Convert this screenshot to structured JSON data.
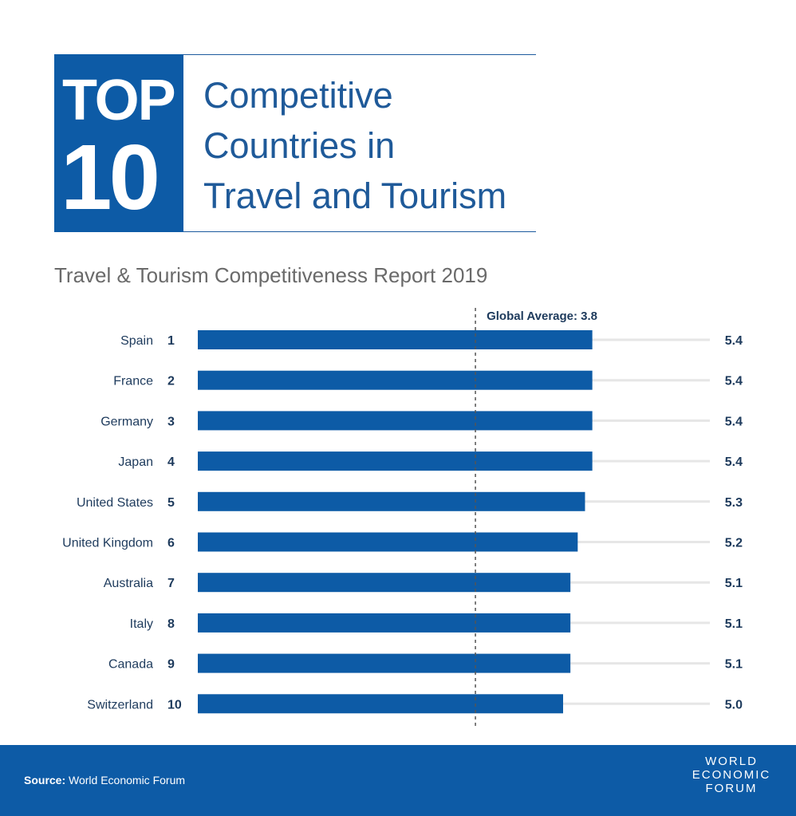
{
  "header": {
    "top_word": "TOP",
    "top_number": "10",
    "title_lines": [
      "Competitive",
      "Countries in",
      "Travel and Tourism"
    ],
    "subtitle": "Travel & Tourism Competitiveness Report 2019"
  },
  "footer": {
    "source_label": "Source:",
    "source_text": "World Economic Forum",
    "logo_lines": [
      "WORLD",
      "ECONOMIC",
      "FORUM"
    ]
  },
  "colors": {
    "bar": "#0d5ba6",
    "track": "#e6e6e6",
    "text": "#1d3a5c",
    "reference_line": "#555555"
  },
  "chart_data": {
    "type": "bar",
    "orientation": "horizontal",
    "categories": [
      "Spain",
      "France",
      "Germany",
      "Japan",
      "United States",
      "United Kingdom",
      "Australia",
      "Italy",
      "Canada",
      "Switzerland"
    ],
    "ranks": [
      "1",
      "2",
      "3",
      "4",
      "5",
      "6",
      "7",
      "8",
      "9",
      "10"
    ],
    "values": [
      5.4,
      5.4,
      5.4,
      5.4,
      5.3,
      5.2,
      5.1,
      5.1,
      5.1,
      5.0
    ],
    "value_labels": [
      "5.4",
      "5.4",
      "5.4",
      "5.4",
      "5.3",
      "5.2",
      "5.1",
      "5.1",
      "5.1",
      "5.0"
    ],
    "xlim": [
      0,
      7
    ],
    "reference_line": {
      "value": 3.8,
      "label": "Global Average: 3.8"
    }
  }
}
